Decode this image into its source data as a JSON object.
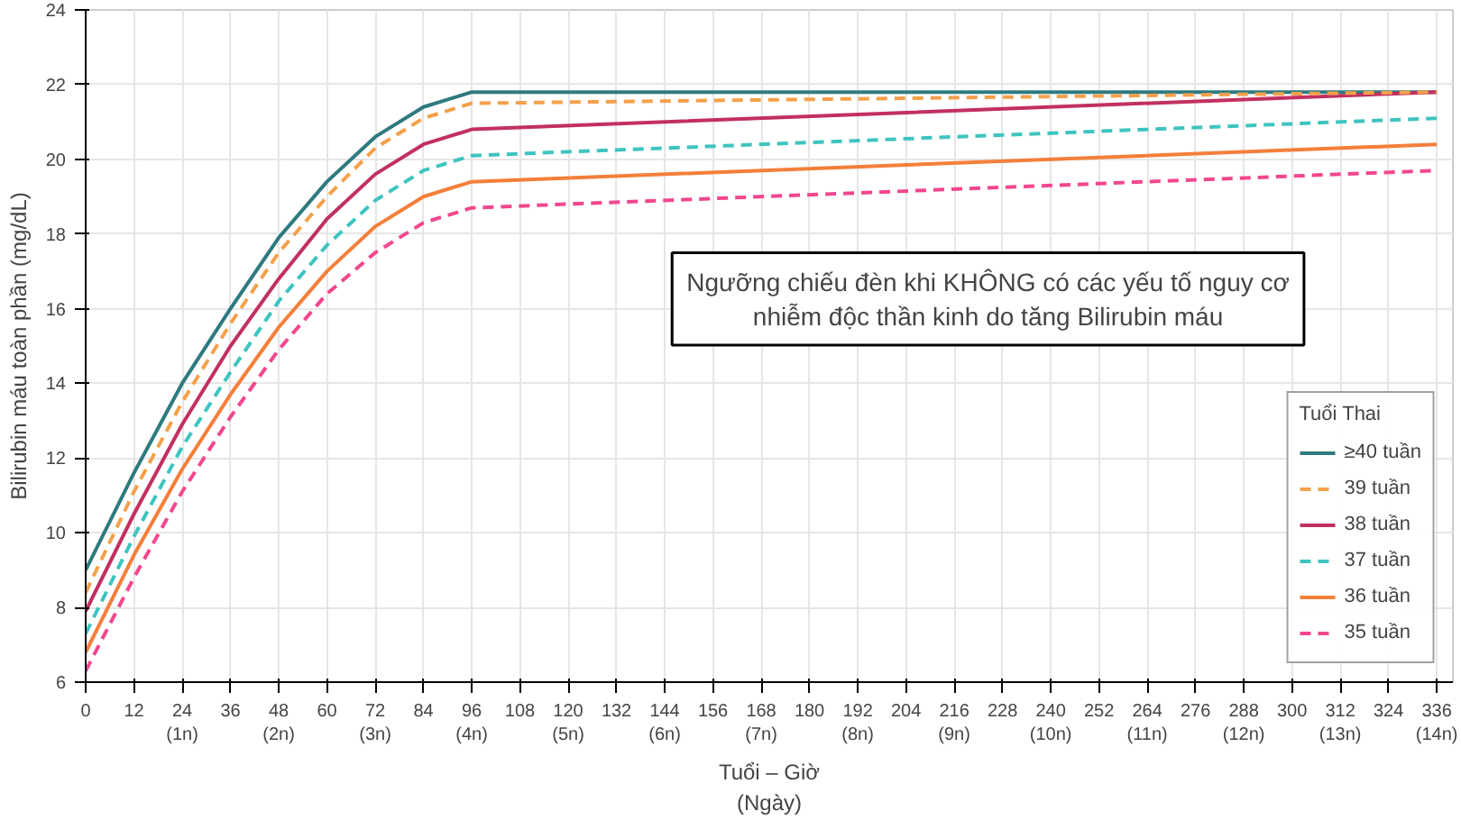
{
  "chart_data": {
    "type": "line",
    "xlabel": "Tuổi – Giờ\n(Ngày)",
    "ylabel": "Bilirubin máu toàn phần (mg/dL)",
    "legend_title": "Tuổi Thai",
    "annotations": [
      "Ngưỡng chiếu đèn khi KHÔNG có các yếu tố nguy cơ\nnhiễm độc thần kinh do tăng Bilirubin máu"
    ],
    "x": [
      0,
      12,
      24,
      36,
      48,
      60,
      72,
      84,
      96,
      336
    ],
    "series": [
      {
        "name": "≥40 tuần",
        "color": "#2e7a7f",
        "line_style": "solid",
        "values": [
          9,
          11.6,
          14.0,
          16.0,
          17.9,
          19.4,
          20.6,
          21.4,
          21.8,
          21.8
        ]
      },
      {
        "name": "39 tuần",
        "color": "#f5a04a",
        "line_style": "dashed",
        "values": [
          8.4,
          11.1,
          13.5,
          15.6,
          17.5,
          19.0,
          20.3,
          21.1,
          21.5,
          21.8
        ]
      },
      {
        "name": "38 tuần",
        "color": "#c2305f",
        "line_style": "solid",
        "values": [
          7.9,
          10.5,
          12.9,
          15.0,
          16.8,
          18.4,
          19.6,
          20.4,
          20.8,
          21.8
        ]
      },
      {
        "name": "37 tuần",
        "color": "#3ec4c0",
        "line_style": "dashed",
        "values": [
          7.3,
          9.9,
          12.3,
          14.3,
          16.2,
          17.7,
          18.9,
          19.7,
          20.1,
          21.1
        ]
      },
      {
        "name": "36 tuần",
        "color": "#f47f3a",
        "line_style": "solid",
        "values": [
          6.8,
          9.4,
          11.7,
          13.7,
          15.5,
          17.0,
          18.2,
          19.0,
          19.4,
          20.4
        ]
      },
      {
        "name": "35 tuần",
        "color": "#f2468e",
        "line_style": "dashed",
        "values": [
          6.3,
          8.8,
          11.1,
          13.1,
          14.9,
          16.4,
          17.5,
          18.3,
          18.7,
          19.7
        ]
      }
    ],
    "xlim": [
      0,
      340
    ],
    "xticks": [
      0,
      12,
      {
        "value": 24,
        "label": "24\n(1n)"
      },
      36,
      {
        "value": 48,
        "label": "48\n(2n)"
      },
      60,
      {
        "value": 72,
        "label": "72\n(3n)"
      },
      84,
      {
        "value": 96,
        "label": "96\n(4n)"
      },
      108,
      {
        "value": 120,
        "label": "120\n(5n)"
      },
      132,
      {
        "value": 144,
        "label": "144\n(6n)"
      },
      156,
      {
        "value": 168,
        "label": "168\n(7n)"
      },
      180,
      {
        "value": 192,
        "label": "192\n(8n)"
      },
      204,
      {
        "value": 216,
        "label": "216\n(9n)"
      },
      228,
      {
        "value": 240,
        "label": "240\n(10n)"
      },
      252,
      {
        "value": 264,
        "label": "264\n(11n)"
      },
      276,
      {
        "value": 288,
        "label": "288\n(12n)"
      },
      300,
      {
        "value": 312,
        "label": "312\n(13n)"
      },
      324,
      {
        "value": 336,
        "label": "336\n(14n)"
      }
    ],
    "ylim": [
      6,
      24
    ],
    "yticks": [
      6,
      8,
      10,
      12,
      14,
      16,
      18,
      20,
      22,
      24
    ],
    "grid": true,
    "legend": "bottom right"
  }
}
